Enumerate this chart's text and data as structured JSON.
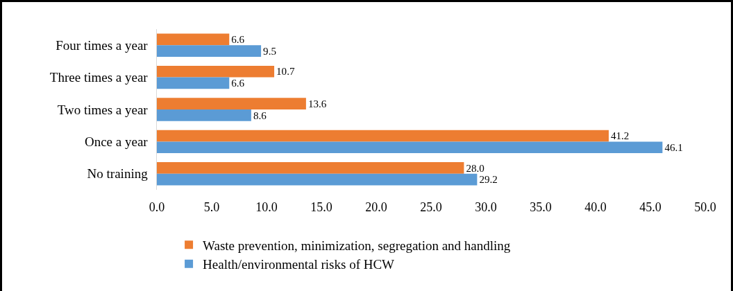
{
  "chart_data": {
    "type": "bar",
    "orientation": "horizontal",
    "categories": [
      "Four times a year",
      "Three times a year",
      "Two times a year",
      "Once a year",
      "No training"
    ],
    "series": [
      {
        "name": "Waste prevention, minimization, segregation and handling",
        "color": "#ed7d31",
        "values": [
          6.6,
          10.7,
          13.6,
          41.2,
          28.0
        ],
        "value_labels": [
          "6.6",
          "10.7",
          "13.6",
          "41.2",
          "28.0"
        ]
      },
      {
        "name": "Health/environmental risks of HCW",
        "color": "#5b9bd5",
        "values": [
          9.5,
          6.6,
          8.6,
          46.1,
          29.2
        ],
        "value_labels": [
          "9.5",
          "6.6",
          "8.6",
          "46.1",
          "29.2"
        ]
      }
    ],
    "xlim": [
      0,
      50
    ],
    "xticks": [
      {
        "value": 0,
        "label": "0.0"
      },
      {
        "value": 5,
        "label": "5.0"
      },
      {
        "value": 10,
        "label": "10.0"
      },
      {
        "value": 15,
        "label": "15.0"
      },
      {
        "value": 20,
        "label": "20.0"
      },
      {
        "value": 25,
        "label": "25.0"
      },
      {
        "value": 30,
        "label": "30.0"
      },
      {
        "value": 35,
        "label": "35.0"
      },
      {
        "value": 40,
        "label": "40.0"
      },
      {
        "value": 45,
        "label": "45.0"
      },
      {
        "value": 50,
        "label": "50.0"
      }
    ],
    "grid": false,
    "legend": "bottom"
  }
}
